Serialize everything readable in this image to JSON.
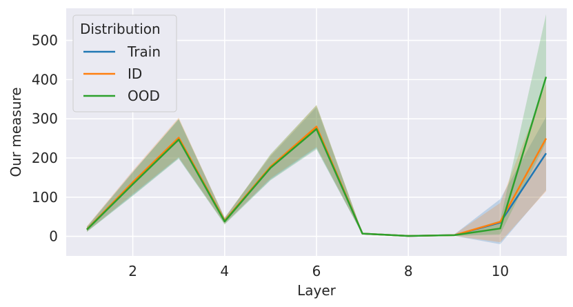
{
  "chart_data": {
    "type": "line",
    "title": "",
    "xlabel": "Layer",
    "ylabel": "Our measure",
    "x": [
      1,
      2,
      3,
      4,
      5,
      6,
      7,
      8,
      9,
      10,
      11
    ],
    "xticks": [
      2,
      4,
      6,
      8,
      10
    ],
    "yticks": [
      0,
      100,
      200,
      300,
      400,
      500
    ],
    "xlim": [
      0.55,
      11.45
    ],
    "ylim": [
      -50,
      582
    ],
    "grid": true,
    "legend": {
      "title": "Distribution",
      "placement": "top-left"
    },
    "series": [
      {
        "name": "Train",
        "color": "#1f77b4",
        "values": [
          18,
          135,
          248,
          40,
          175,
          275,
          7,
          1,
          3,
          35,
          212
        ],
        "ci_lower": [
          12,
          105,
          200,
          32,
          145,
          225,
          5,
          0,
          1,
          -20,
          118
        ],
        "ci_upper": [
          25,
          165,
          298,
          48,
          205,
          330,
          9,
          2,
          5,
          95,
          305
        ]
      },
      {
        "name": "ID",
        "color": "#ff7f0e",
        "values": [
          18,
          138,
          252,
          40,
          178,
          280,
          7,
          1,
          3,
          37,
          250
        ],
        "ci_lower": [
          12,
          108,
          202,
          32,
          148,
          228,
          5,
          0,
          1,
          -15,
          115
        ],
        "ci_upper": [
          26,
          168,
          303,
          48,
          208,
          335,
          9,
          2,
          5,
          85,
          390
        ]
      },
      {
        "name": "OOD",
        "color": "#2ca02c",
        "values": [
          17,
          133,
          247,
          38,
          175,
          274,
          7,
          1,
          3,
          20,
          407
        ],
        "ci_lower": [
          11,
          103,
          198,
          30,
          143,
          222,
          5,
          0,
          1,
          5,
          240
        ],
        "ci_upper": [
          24,
          163,
          300,
          46,
          210,
          335,
          9,
          2,
          5,
          40,
          567
        ]
      }
    ]
  }
}
